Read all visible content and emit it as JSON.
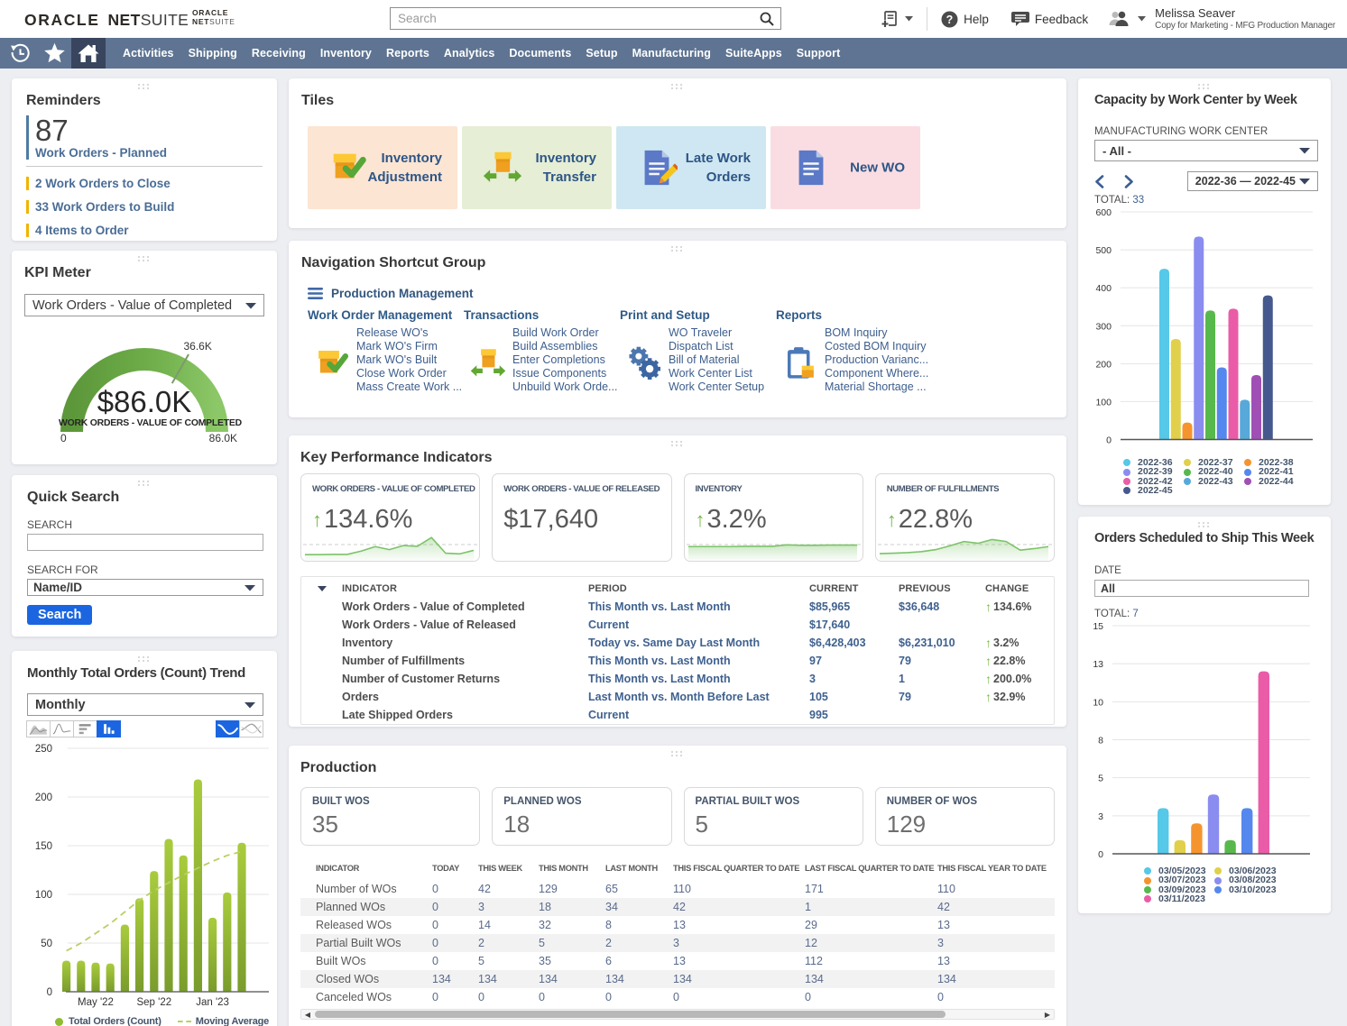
{
  "header": {
    "logo_oracle": "ORACLE",
    "logo_net": "NET",
    "logo_suite": "SUITE",
    "search_placeholder": "Search",
    "help": "Help",
    "feedback": "Feedback",
    "user_name": "Melissa Seaver",
    "user_role": "Copy for Marketing - MFG Production Manager"
  },
  "navbar": {
    "items": [
      "Activities",
      "Shipping",
      "Receiving",
      "Inventory",
      "Reports",
      "Analytics",
      "Documents",
      "Setup",
      "Manufacturing",
      "SuiteApps",
      "Support"
    ]
  },
  "reminders": {
    "title": "Reminders",
    "primary": {
      "count": "87",
      "label": "Work Orders - Planned"
    },
    "items": [
      {
        "count": "2",
        "label": "Work Orders to Close"
      },
      {
        "count": "33",
        "label": "Work Orders to Build"
      },
      {
        "count": "4",
        "label": "Items to Order"
      }
    ]
  },
  "kpi_meter": {
    "title": "KPI Meter",
    "selector_value": "Work Orders - Value of Completed"
  },
  "quick_search": {
    "title": "Quick Search",
    "search_label": "SEARCH",
    "search_value": "",
    "search_for_label": "SEARCH FOR",
    "search_for_value": "Name/ID",
    "button_label": "Search"
  },
  "monthly_trend": {
    "title": "Monthly Total Orders (Count) Trend",
    "selector_value": "Monthly"
  },
  "tiles": {
    "title": "Tiles",
    "items": [
      {
        "label": "Inventory Adjustment",
        "icon": "box-check",
        "bg": "#fce5d3"
      },
      {
        "label": "Inventory Transfer",
        "icon": "box-arrows",
        "bg": "#e6eed6"
      },
      {
        "label": "Late Work Orders",
        "icon": "doc-pencil",
        "bg": "#cfe7f2"
      },
      {
        "label": "New WO",
        "icon": "doc",
        "bg": "#fadde2"
      }
    ]
  },
  "shortcut_group": {
    "title": "Navigation Shortcut Group",
    "group_label": "Production Management",
    "columns": [
      {
        "header": "Work Order Management",
        "icon": "box-check",
        "links": [
          "Release WO's",
          "Mark WO's Firm",
          "Mark WO's Built",
          "Close Work Order",
          "Mass Create Work ..."
        ]
      },
      {
        "header": "Transactions",
        "icon": "box-arrows",
        "links": [
          "Build Work Order",
          "Build Assemblies",
          "Enter Completions",
          "Issue Components",
          "Unbuild Work Orde..."
        ]
      },
      {
        "header": "Print and Setup",
        "icon": "gears",
        "links": [
          "WO Traveler",
          "Dispatch List",
          "Bill of Material",
          "Work Center List",
          "Work Center Setup"
        ]
      },
      {
        "header": "Reports",
        "icon": "clipboard",
        "links": [
          "BOM Inquiry",
          "Costed BOM Inquiry",
          "Production Varianc...",
          "Component Where...",
          "Material Shortage ..."
        ]
      }
    ]
  },
  "kpi": {
    "title": "Key Performance Indicators",
    "cards": [
      {
        "title": "WORK ORDERS - VALUE OF COMPLETED",
        "value": "134.6%",
        "up": true,
        "spark": [
          10,
          10,
          11,
          11,
          24,
          42,
          30,
          46,
          43,
          78,
          16,
          13,
          27
        ]
      },
      {
        "title": "WORK ORDERS - VALUE OF RELEASED",
        "value": "$17,640",
        "up": false,
        "spark": null
      },
      {
        "title": "INVENTORY",
        "value": "3.2%",
        "up": true,
        "spark": [
          42,
          42,
          42,
          42,
          43,
          43,
          43,
          49,
          47,
          47,
          48,
          48,
          48
        ]
      },
      {
        "title": "NUMBER OF FULFILLMENTS",
        "value": "22.8%",
        "up": true,
        "spark": [
          14,
          16,
          18,
          22,
          30,
          45,
          62,
          55,
          70,
          62,
          28,
          34,
          42
        ]
      }
    ],
    "table": {
      "headers": [
        "INDICATOR",
        "PERIOD",
        "CURRENT",
        "PREVIOUS",
        "CHANGE"
      ],
      "rows": [
        {
          "indicator": "Work Orders - Value of Completed",
          "period": "This Month vs. Last Month",
          "current": "$85,965",
          "previous": "$36,648",
          "change": "134.6%"
        },
        {
          "indicator": "Work Orders - Value of Released",
          "period": "Current",
          "current": "$17,640",
          "previous": "",
          "change": ""
        },
        {
          "indicator": "Inventory",
          "period": "Today vs. Same Day Last Month",
          "current": "$6,428,403",
          "previous": "$6,231,010",
          "change": "3.2%"
        },
        {
          "indicator": "Number of Fulfillments",
          "period": "This Month vs. Last Month",
          "current": "97",
          "previous": "79",
          "change": "22.8%"
        },
        {
          "indicator": "Number of Customer Returns",
          "period": "This Month vs. Last Month",
          "current": "3",
          "previous": "1",
          "change": "200.0%"
        },
        {
          "indicator": "Orders",
          "period": "Last Month vs. Month Before Last",
          "current": "105",
          "previous": "79",
          "change": "32.9%"
        },
        {
          "indicator": "Late Shipped Orders",
          "period": "Current",
          "current": "995",
          "previous": "",
          "change": ""
        }
      ]
    }
  },
  "production": {
    "title": "Production",
    "cards": [
      {
        "label": "BUILT WOS",
        "value": "35"
      },
      {
        "label": "PLANNED WOS",
        "value": "18"
      },
      {
        "label": "PARTIAL BUILT WOS",
        "value": "5"
      },
      {
        "label": "NUMBER OF WOS",
        "value": "129"
      }
    ],
    "table": {
      "headers": [
        "INDICATOR",
        "TODAY",
        "THIS WEEK",
        "THIS MONTH",
        "LAST MONTH",
        "THIS FISCAL QUARTER TO DATE",
        "LAST FISCAL QUARTER TO DATE",
        "THIS FISCAL YEAR TO DATE"
      ],
      "rows": [
        [
          "Number of WOs",
          "0",
          "42",
          "129",
          "65",
          "110",
          "171",
          "110"
        ],
        [
          "Planned WOs",
          "0",
          "3",
          "18",
          "34",
          "42",
          "1",
          "42"
        ],
        [
          "Released WOs",
          "0",
          "14",
          "32",
          "8",
          "13",
          "29",
          "13"
        ],
        [
          "Partial Built WOs",
          "0",
          "2",
          "5",
          "2",
          "3",
          "12",
          "3"
        ],
        [
          "Built WOs",
          "0",
          "5",
          "35",
          "6",
          "13",
          "112",
          "13"
        ],
        [
          "Closed WOs",
          "134",
          "134",
          "134",
          "134",
          "134",
          "134",
          "134"
        ],
        [
          "Canceled WOs",
          "0",
          "0",
          "0",
          "0",
          "0",
          "0",
          "0"
        ]
      ]
    }
  },
  "capacity": {
    "title": "Capacity by Work Center by Week",
    "filter_label": "MANUFACTURING WORK CENTER",
    "filter_value": "- All -",
    "range_value": "2022-36 — 2022-45",
    "total_label": "TOTAL:",
    "total_value": "33"
  },
  "orders_ship": {
    "title": "Orders Scheduled to Ship This Week",
    "date_label": "DATE",
    "date_value": "All",
    "total_label": "TOTAL:",
    "total_value": "7"
  },
  "chart_data": [
    {
      "id": "kpi-gauge",
      "type": "gauge",
      "min": 0,
      "max": 86000,
      "value": 86000,
      "tick_value": 36600,
      "tick_fraction": 0.665,
      "value_label": "$86.0K",
      "caption": "WORK ORDERS - VALUE OF COMPLETED",
      "min_label": "0",
      "max_label": "86.0K",
      "tick_label": "36.6K",
      "arc_color_start": "#5c973a",
      "arc_color_end": "#8cc768"
    },
    {
      "id": "monthly-total-orders",
      "type": "bar",
      "title": "Monthly Total Orders (Count) Trend",
      "ylim": [
        0,
        250
      ],
      "yticks": [
        0,
        50,
        100,
        150,
        200,
        250
      ],
      "x_tick_labels": [
        {
          "index": 2,
          "label": "May '22"
        },
        {
          "index": 6,
          "label": "Sep '22"
        },
        {
          "index": 10,
          "label": "Jan '23"
        }
      ],
      "series": [
        {
          "name": "Total Orders (Count)",
          "type": "bar",
          "values": [
            32,
            32,
            30,
            29,
            69,
            96,
            124,
            157,
            140,
            218,
            76,
            102,
            153
          ]
        },
        {
          "name": "Moving Average",
          "type": "dashed-line",
          "values": [
            42,
            50,
            60,
            70,
            82,
            94,
            104,
            112,
            120,
            127,
            134,
            140,
            144
          ]
        }
      ],
      "bar_color_top": "#a9cc3d",
      "bar_color_bottom": "#7a9c2c",
      "ma_color": "#b9cf63",
      "legend_dot": "#8fbc33"
    },
    {
      "id": "capacity-by-week",
      "type": "bar",
      "title": "Capacity by Work Center by Week",
      "ylim": [
        0,
        600
      ],
      "yticks": [
        0,
        100,
        200,
        300,
        400,
        500,
        600
      ],
      "categories": [
        "2022-36",
        "2022-37",
        "2022-38",
        "2022-39",
        "2022-40",
        "2022-41",
        "2022-42",
        "2022-43",
        "2022-44",
        "2022-45"
      ],
      "values": [
        450,
        265,
        45,
        535,
        340,
        190,
        345,
        105,
        170,
        380
      ],
      "colors": [
        "#56c8e8",
        "#e0d04b",
        "#f5942e",
        "#8a8cf0",
        "#57b94b",
        "#5588ee",
        "#ea5ca8",
        "#57a9d9",
        "#a04fb5",
        "#46598e"
      ],
      "legend_columns": 3
    },
    {
      "id": "orders-to-ship",
      "type": "bar",
      "title": "Orders Scheduled to Ship This Week",
      "ylim": [
        0,
        15
      ],
      "ytick_pairs": [
        {
          "label": "0",
          "v": 0
        },
        {
          "label": "3",
          "v": 2.5
        },
        {
          "label": "5",
          "v": 5
        },
        {
          "label": "8",
          "v": 7.5
        },
        {
          "label": "10",
          "v": 10
        },
        {
          "label": "13",
          "v": 12.5
        },
        {
          "label": "15",
          "v": 15
        }
      ],
      "categories": [
        "03/05/2023",
        "03/06/2023",
        "03/07/2023",
        "03/08/2023",
        "03/09/2023",
        "03/10/2023",
        "03/11/2023"
      ],
      "values": [
        3,
        0.9,
        2,
        3.9,
        0.9,
        3,
        12
      ],
      "colors": [
        "#56c8e8",
        "#e0d04b",
        "#f5942e",
        "#8a8cf0",
        "#57b94b",
        "#5588ee",
        "#ea5ca8"
      ],
      "legend_columns": 2
    }
  ]
}
